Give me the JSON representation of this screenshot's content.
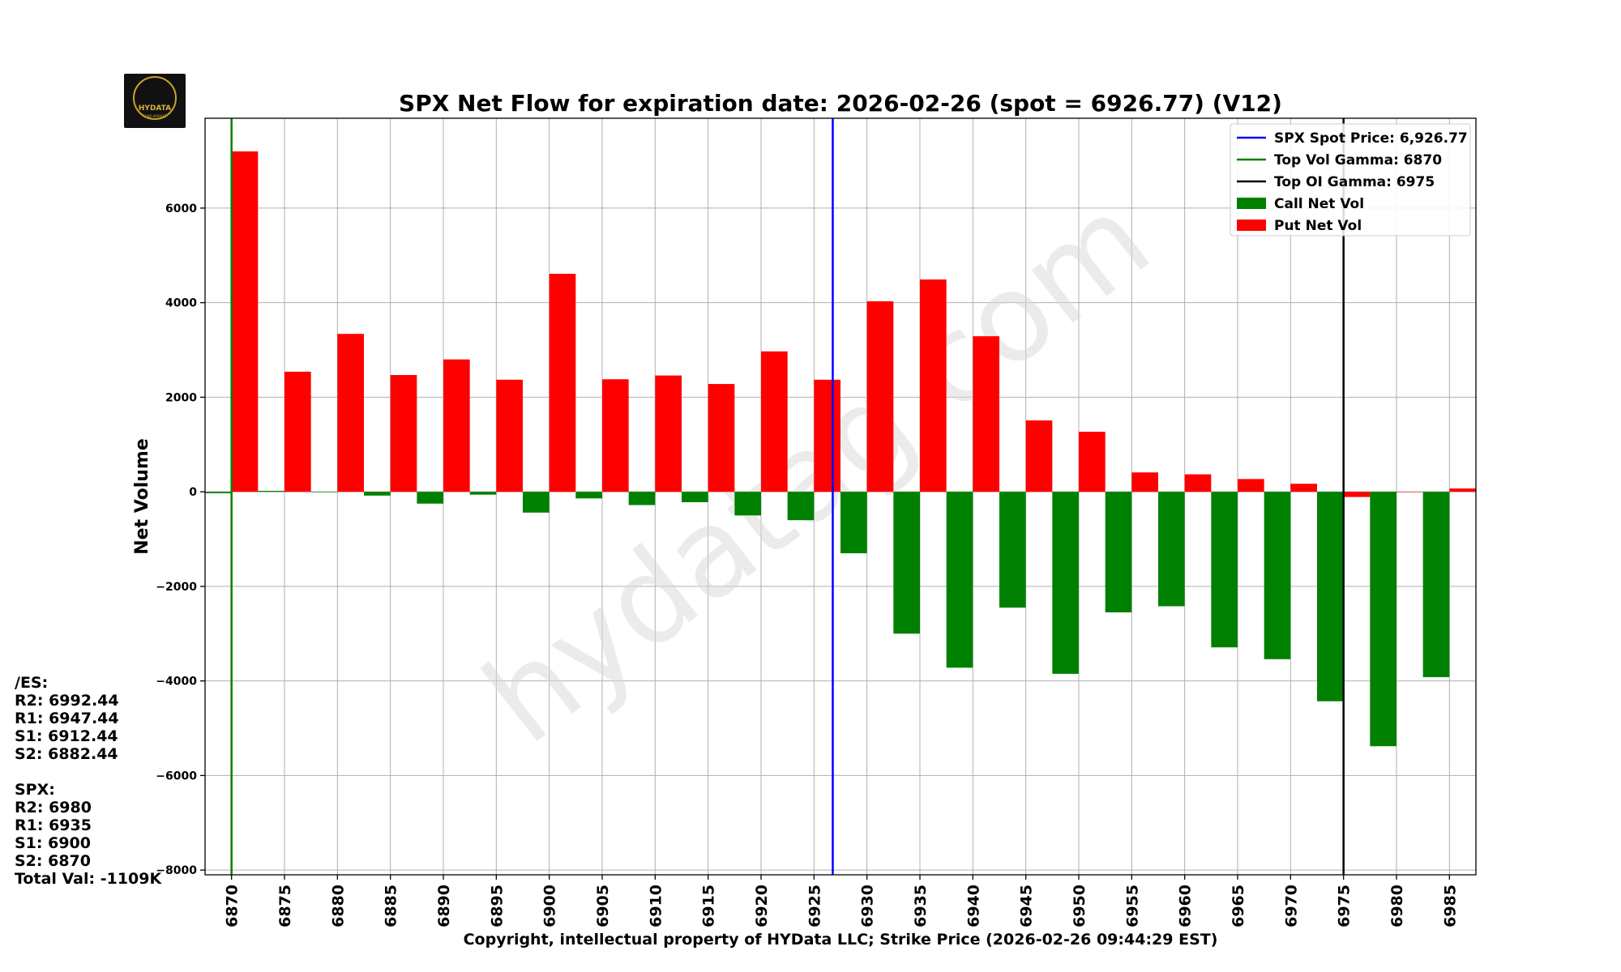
{
  "chart_data": {
    "type": "bar",
    "title": "SPX Net Flow for expiration date: 2026-02-26 (spot = 6926.77) (V12)",
    "xlabel": "Copyright, intellectual property of HYData LLC; Strike Price (2026-02-26 09:44:29 EST)",
    "ylabel": "Net Volume",
    "ylim": [
      -8100,
      7900
    ],
    "yticks": [
      -8000,
      -6000,
      -4000,
      -2000,
      0,
      2000,
      4000,
      6000
    ],
    "ytick_labels": [
      "−8000",
      "−6000",
      "−4000",
      "−2000",
      "0",
      "2000",
      "4000",
      "6000"
    ],
    "grid": true,
    "legend_position": "top-right",
    "categories": [
      "6870",
      "6875",
      "6880",
      "6885",
      "6890",
      "6895",
      "6900",
      "6905",
      "6910",
      "6915",
      "6920",
      "6925",
      "6930",
      "6935",
      "6940",
      "6945",
      "6950",
      "6955",
      "6960",
      "6965",
      "6970",
      "6975",
      "6980",
      "6985"
    ],
    "series": [
      {
        "name": "Call Net Vol",
        "color": "#008000",
        "values": [
          -30,
          20,
          -10,
          -80,
          -250,
          -60,
          -440,
          -140,
          -280,
          -220,
          -500,
          -600,
          -1300,
          -3000,
          -3720,
          -2450,
          -3850,
          -2550,
          -2420,
          -3290,
          -3540,
          -4430,
          -5380,
          -3920
        ]
      },
      {
        "name": "Put Net Vol",
        "color": "#ff0000",
        "values": [
          7200,
          2540,
          3340,
          2470,
          2800,
          2370,
          4610,
          2380,
          2460,
          2280,
          2970,
          2370,
          4030,
          4490,
          3290,
          1510,
          1270,
          410,
          370,
          270,
          170,
          -110,
          0,
          70
        ]
      }
    ],
    "vlines": [
      {
        "name": "SPX Spot Price: 6,926.77",
        "x": 6926.77,
        "color": "#0000ff"
      },
      {
        "name": "Top Vol Gamma: 6870",
        "x": 6870,
        "color": "#008000"
      },
      {
        "name": "Top OI Gamma: 6975",
        "x": 6975,
        "color": "#000000"
      }
    ],
    "watermark": "hydatag.com"
  },
  "logo": {
    "text": "HYDATA",
    "subtext": "FUND MARKET"
  },
  "side_panel": {
    "es_header": "/ES:",
    "es_r2": "R2: 6992.44",
    "es_r1": "R1: 6947.44",
    "es_s1": "S1: 6912.44",
    "es_s2": "S2: 6882.44",
    "spx_header": "SPX:",
    "spx_r2": "R2: 6980",
    "spx_r1": "R1: 6935",
    "spx_s1": "S1: 6900",
    "spx_s2": "S2: 6870",
    "total_val": "Total Val: -1109K"
  }
}
